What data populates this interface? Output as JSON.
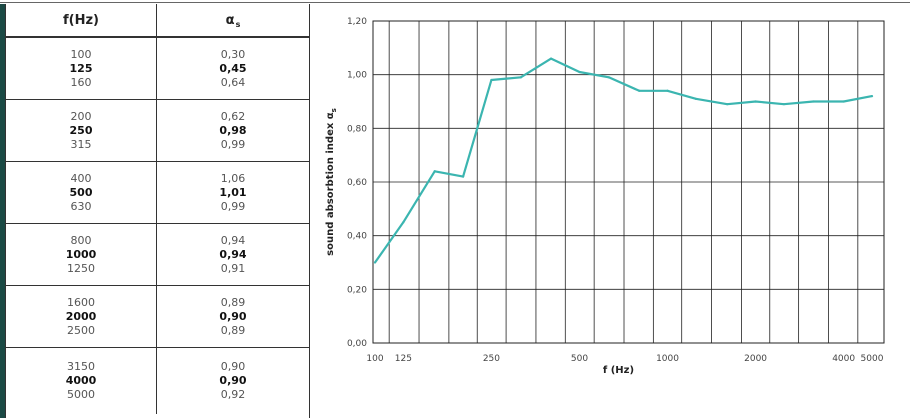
{
  "table": {
    "header": {
      "freq": "f(Hz)",
      "alpha": "α",
      "alpha_sub": "s"
    },
    "groups": [
      {
        "rows": [
          {
            "f": "100",
            "a": "0,30",
            "bold": false
          },
          {
            "f": "125",
            "a": "0,45",
            "bold": true
          },
          {
            "f": "160",
            "a": "0,64",
            "bold": false
          }
        ]
      },
      {
        "rows": [
          {
            "f": "200",
            "a": "0,62",
            "bold": false
          },
          {
            "f": "250",
            "a": "0,98",
            "bold": true
          },
          {
            "f": "315",
            "a": "0,99",
            "bold": false
          }
        ]
      },
      {
        "rows": [
          {
            "f": "400",
            "a": "1,06",
            "bold": false
          },
          {
            "f": "500",
            "a": "1,01",
            "bold": true
          },
          {
            "f": "630",
            "a": "0,99",
            "bold": false
          }
        ]
      },
      {
        "rows": [
          {
            "f": "800",
            "a": "0,94",
            "bold": false
          },
          {
            "f": "1000",
            "a": "0,94",
            "bold": true
          },
          {
            "f": "1250",
            "a": "0,91",
            "bold": false
          }
        ]
      },
      {
        "rows": [
          {
            "f": "1600",
            "a": "0,89",
            "bold": false
          },
          {
            "f": "2000",
            "a": "0,90",
            "bold": true
          },
          {
            "f": "2500",
            "a": "0,89",
            "bold": false
          }
        ]
      },
      {
        "rows": [
          {
            "f": "3150",
            "a": "0,90",
            "bold": false
          },
          {
            "f": "4000",
            "a": "0,90",
            "bold": true
          },
          {
            "f": "5000",
            "a": "0,92",
            "bold": false
          }
        ]
      }
    ]
  },
  "chart_data": {
    "type": "line",
    "xlabel": "f (Hz)",
    "ylabel": "sound absorbtion index α",
    "ylabel_sub": "s",
    "x_scale": "log (one-third octave bands)",
    "x": [
      100,
      125,
      160,
      200,
      250,
      315,
      400,
      500,
      630,
      800,
      1000,
      1250,
      1600,
      2000,
      2500,
      3150,
      4000,
      5000
    ],
    "series": [
      {
        "values": [
          0.3,
          0.45,
          0.64,
          0.62,
          0.98,
          0.99,
          1.06,
          1.01,
          0.99,
          0.94,
          0.94,
          0.91,
          0.89,
          0.9,
          0.89,
          0.9,
          0.9,
          0.92
        ]
      }
    ],
    "x_tick_labels": [
      {
        "f": 100,
        "label": "100"
      },
      {
        "f": 125,
        "label": "125"
      },
      {
        "f": 250,
        "label": "250"
      },
      {
        "f": 500,
        "label": "500"
      },
      {
        "f": 1000,
        "label": "1000"
      },
      {
        "f": 2000,
        "label": "2000"
      },
      {
        "f": 4000,
        "label": "4000"
      },
      {
        "f": 5000,
        "label": "5000"
      }
    ],
    "y_ticks": [
      0,
      0.2,
      0.4,
      0.6,
      0.8,
      1.0,
      1.2
    ],
    "y_tick_labels": [
      "0,00",
      "0,20",
      "0,40",
      "0,60",
      "0,80",
      "1,00",
      "1,20"
    ],
    "ylim": [
      0,
      1.2
    ],
    "grid": true,
    "line_color": "#3bb5b0"
  }
}
